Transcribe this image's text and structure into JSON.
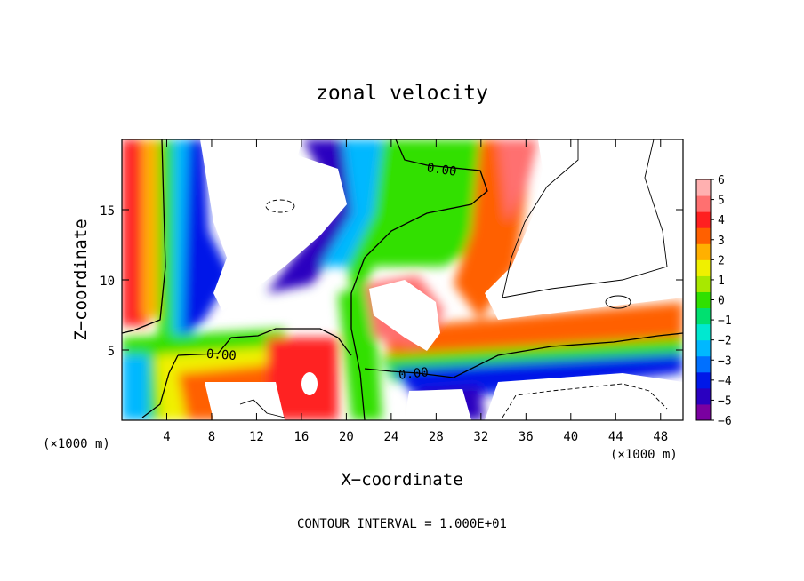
{
  "chart_data": {
    "type": "heatmap",
    "title": "zonal velocity",
    "xlabel": "X−coordinate",
    "ylabel": "Z−coordinate",
    "x_unit_label": "(×1000 m)",
    "y_unit_label": "(×1000 m)",
    "xlim": [
      0,
      50
    ],
    "ylim": [
      0,
      20
    ],
    "x_ticks": [
      4,
      8,
      12,
      16,
      20,
      24,
      28,
      32,
      36,
      40,
      44,
      48
    ],
    "y_ticks": [
      5,
      10,
      15
    ],
    "colorbar": {
      "ticks": [
        6,
        5,
        4,
        3,
        2,
        1,
        0,
        -1,
        -2,
        -3,
        -4,
        -5,
        -6
      ],
      "tick_labels": [
        "6",
        "5",
        "4",
        "3",
        "2",
        "1",
        "0",
        "−1",
        "−2",
        "−3",
        "−4",
        "−5",
        "−6"
      ],
      "range": [
        -6,
        6
      ],
      "colors": [
        "#7a00a0",
        "#2a00c0",
        "#0018e8",
        "#0070ff",
        "#00b8ff",
        "#00e8d0",
        "#00e070",
        "#30e000",
        "#a8e800",
        "#f0f000",
        "#ffb000",
        "#ff6000",
        "#ff2020",
        "#ff7070",
        "#ffb0b0"
      ]
    },
    "contour_labels": [
      {
        "text": "0.00",
        "x": 28.5,
        "z": 17.6
      },
      {
        "text": "0.00",
        "x": 10.0,
        "z": 4.7
      },
      {
        "text": "0.00",
        "x": 26.2,
        "z": 3.5
      }
    ],
    "footnote": "CONTOUR INTERVAL = 1.000E+01",
    "grid": false
  }
}
